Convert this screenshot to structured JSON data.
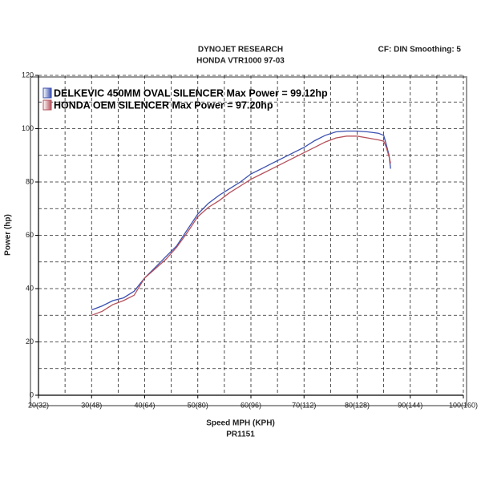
{
  "chart_data": {
    "type": "line",
    "title": "DYNOJET RESEARCH",
    "subtitle": "HONDA VTR1000 97-03",
    "settings_text": "CF: DIN  Smoothing: 5",
    "x_label": "Speed MPH (KPH)",
    "run_label": "PR1151",
    "y_label": "Power (hp)",
    "xlim": [
      20,
      100
    ],
    "ylim": [
      0,
      120
    ],
    "xticks": [
      {
        "value": 20,
        "label": "20(32)"
      },
      {
        "value": 30,
        "label": "30(48)"
      },
      {
        "value": 40,
        "label": "40(64)"
      },
      {
        "value": 50,
        "label": "50(80)"
      },
      {
        "value": 60,
        "label": "60(96)"
      },
      {
        "value": 70,
        "label": "70(112)"
      },
      {
        "value": 80,
        "label": "80(128)"
      },
      {
        "value": 90,
        "label": "90(144)"
      },
      {
        "value": 100,
        "label": "100(160)"
      }
    ],
    "yticks": [
      0,
      20,
      40,
      60,
      80,
      100,
      120
    ],
    "xminor": [
      25,
      35,
      45,
      55,
      65,
      75,
      85,
      95
    ],
    "yminor": [
      10,
      30,
      50,
      70,
      90,
      110
    ],
    "grid": true,
    "legend": "top-left",
    "x": [
      30,
      32,
      34,
      36,
      38,
      40,
      42,
      44,
      46,
      48,
      50,
      52,
      54,
      56,
      58,
      60,
      62,
      64,
      66,
      68,
      70,
      72,
      74,
      76,
      78,
      80,
      82,
      84,
      85,
      85.5,
      86,
      86.3
    ],
    "series": [
      {
        "name": "DELKEVIC 450MM OVAL SILENCER Max Power = 99.12hp",
        "color": "#3a4fb0",
        "values": [
          32,
          33.5,
          35.5,
          36.5,
          39,
          44,
          48,
          52,
          56,
          62,
          68,
          72,
          75,
          77.5,
          80,
          83,
          85,
          87,
          89,
          91,
          93,
          95.5,
          97.5,
          98.8,
          99.1,
          99.1,
          98.8,
          98.3,
          97.5,
          94,
          90,
          85
        ]
      },
      {
        "name": "HONDA OEM SILENCER Max Power = 97.20hp",
        "color": "#b5505a",
        "values": [
          30,
          31.5,
          34,
          35.5,
          37.5,
          44,
          47.5,
          51,
          55.5,
          61,
          67,
          70.5,
          73,
          76,
          78.5,
          81,
          83,
          85,
          87,
          89,
          91,
          93,
          95,
          96.5,
          97.2,
          97.2,
          96.5,
          95.8,
          95.3,
          93,
          89.5,
          87
        ]
      }
    ]
  }
}
